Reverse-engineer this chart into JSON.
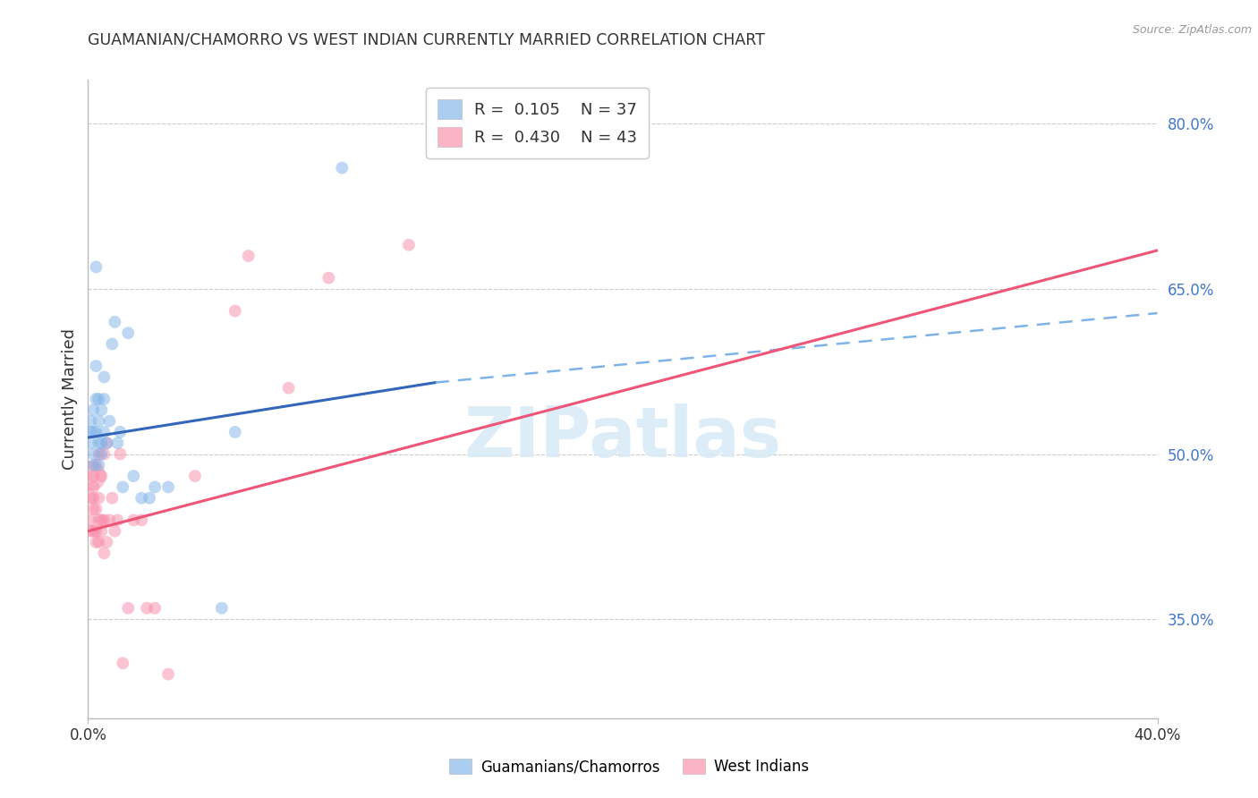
{
  "title": "GUAMANIAN/CHAMORRO VS WEST INDIAN CURRENTLY MARRIED CORRELATION CHART",
  "source": "Source: ZipAtlas.com",
  "ylabel": "Currently Married",
  "right_yticks": [
    0.35,
    0.5,
    0.65,
    0.8
  ],
  "right_ytick_labels": [
    "35.0%",
    "50.0%",
    "65.0%",
    "80.0%"
  ],
  "legend_blue_r": "R = 0.105",
  "legend_blue_n": "N = 37",
  "legend_pink_r": "R = 0.430",
  "legend_pink_n": "N = 43",
  "blue_color": "#7EB3E8",
  "pink_color": "#F98BA8",
  "blue_line_color": "#3366BB",
  "pink_line_color": "#EE5577",
  "blue_scatter": {
    "x": [
      0.001,
      0.001,
      0.001,
      0.002,
      0.002,
      0.002,
      0.002,
      0.003,
      0.003,
      0.003,
      0.003,
      0.004,
      0.004,
      0.004,
      0.004,
      0.005,
      0.005,
      0.005,
      0.006,
      0.006,
      0.006,
      0.007,
      0.008,
      0.009,
      0.01,
      0.011,
      0.012,
      0.013,
      0.015,
      0.017,
      0.02,
      0.023,
      0.025,
      0.03,
      0.05,
      0.055,
      0.095
    ],
    "y": [
      0.51,
      0.52,
      0.53,
      0.5,
      0.52,
      0.54,
      0.49,
      0.55,
      0.67,
      0.52,
      0.58,
      0.51,
      0.53,
      0.55,
      0.49,
      0.51,
      0.54,
      0.5,
      0.52,
      0.55,
      0.57,
      0.51,
      0.53,
      0.6,
      0.62,
      0.51,
      0.52,
      0.47,
      0.61,
      0.48,
      0.46,
      0.46,
      0.47,
      0.47,
      0.36,
      0.52,
      0.76
    ],
    "sizes": [
      100,
      100,
      100,
      100,
      100,
      100,
      100,
      100,
      100,
      100,
      100,
      100,
      100,
      100,
      100,
      100,
      100,
      100,
      100,
      100,
      100,
      100,
      100,
      100,
      100,
      100,
      100,
      100,
      100,
      100,
      100,
      100,
      100,
      100,
      100,
      100,
      100
    ]
  },
  "pink_scatter": {
    "x": [
      0.001,
      0.001,
      0.001,
      0.001,
      0.002,
      0.002,
      0.002,
      0.002,
      0.002,
      0.003,
      0.003,
      0.003,
      0.003,
      0.004,
      0.004,
      0.004,
      0.004,
      0.005,
      0.005,
      0.005,
      0.006,
      0.006,
      0.006,
      0.007,
      0.007,
      0.008,
      0.009,
      0.01,
      0.011,
      0.012,
      0.013,
      0.015,
      0.017,
      0.02,
      0.022,
      0.025,
      0.03,
      0.04,
      0.055,
      0.06,
      0.075,
      0.09,
      0.12
    ],
    "y": [
      0.43,
      0.44,
      0.46,
      0.48,
      0.45,
      0.46,
      0.48,
      0.47,
      0.43,
      0.43,
      0.45,
      0.42,
      0.49,
      0.46,
      0.5,
      0.44,
      0.42,
      0.44,
      0.43,
      0.48,
      0.41,
      0.44,
      0.5,
      0.51,
      0.42,
      0.44,
      0.46,
      0.43,
      0.44,
      0.5,
      0.31,
      0.36,
      0.44,
      0.44,
      0.36,
      0.36,
      0.3,
      0.48,
      0.63,
      0.68,
      0.56,
      0.66,
      0.69
    ],
    "sizes": [
      100,
      100,
      100,
      600,
      100,
      100,
      100,
      100,
      100,
      100,
      100,
      100,
      100,
      100,
      100,
      100,
      100,
      100,
      100,
      100,
      100,
      100,
      100,
      100,
      100,
      100,
      100,
      100,
      100,
      100,
      100,
      100,
      100,
      100,
      100,
      100,
      100,
      100,
      100,
      100,
      100,
      100,
      100
    ]
  },
  "blue_line": {
    "x": [
      0.0,
      0.13
    ],
    "y": [
      0.515,
      0.565
    ]
  },
  "blue_dashed": {
    "x": [
      0.13,
      0.4
    ],
    "y": [
      0.565,
      0.628
    ]
  },
  "pink_line": {
    "x": [
      0.0,
      0.4
    ],
    "y": [
      0.43,
      0.685
    ]
  },
  "xlim": [
    0.0,
    0.4
  ],
  "ylim": [
    0.26,
    0.84
  ],
  "xtick_positions": [
    0.0,
    0.4
  ],
  "xtick_labels": [
    "0.0%",
    "40.0%"
  ],
  "watermark": "ZIPatlas",
  "background_color": "#ffffff",
  "grid_color": "#cccccc",
  "ytick_color": "#4477CC",
  "text_color": "#333333"
}
